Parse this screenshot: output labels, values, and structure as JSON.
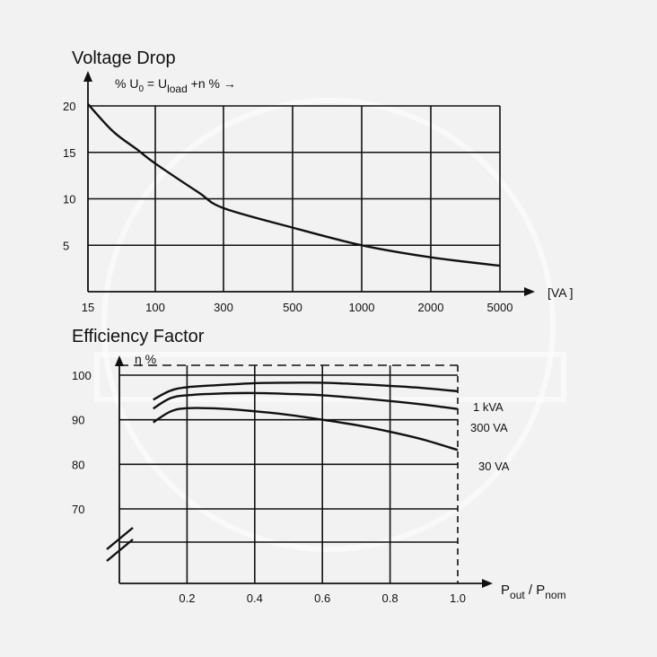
{
  "chart_data": [
    {
      "type": "line",
      "title": "Voltage Drop",
      "ylabel_parts": {
        "pre": "% U",
        "sub0": "0",
        "mid": " = U",
        "sub1": "load",
        "post": "  +n %  →"
      },
      "xlabel": "[VA ]",
      "x_scale": "log",
      "x_ticks": [
        "15",
        "100",
        "300",
        "500",
        "1000",
        "2000",
        "5000"
      ],
      "y_ticks": [
        "5",
        "10",
        "15",
        "20"
      ],
      "ylim": [
        0,
        20
      ],
      "grid": true,
      "series": [
        {
          "points": [
            {
              "x": 15,
              "y": 20.2
            },
            {
              "x": 30,
              "y": 17.3
            },
            {
              "x": 60,
              "y": 15.3
            },
            {
              "x": 100,
              "y": 13.8
            },
            {
              "x": 200,
              "y": 10.7
            },
            {
              "x": 300,
              "y": 9.0
            },
            {
              "x": 500,
              "y": 6.9
            },
            {
              "x": 1000,
              "y": 5.0
            },
            {
              "x": 2000,
              "y": 3.7
            },
            {
              "x": 5000,
              "y": 2.8
            }
          ]
        }
      ]
    },
    {
      "type": "line",
      "title": "Efficiency Factor",
      "ylabel": "η %",
      "xlabel_parts": {
        "pre": "P",
        "sub0": "out",
        "mid": "  /  P",
        "sub1": "nom"
      },
      "x_ticks": [
        "0.2",
        "0.4",
        "0.6",
        "0.8",
        "1.0"
      ],
      "y_ticks": [
        "70",
        "80",
        "90",
        "100"
      ],
      "xlim": [
        0,
        1.0
      ],
      "ylim": [
        70,
        100
      ],
      "grid": true,
      "series": [
        {
          "name": "1 kVA",
          "points": [
            {
              "x": 0.1,
              "y": 94.5
            },
            {
              "x": 0.15,
              "y": 96.5
            },
            {
              "x": 0.2,
              "y": 97.3
            },
            {
              "x": 0.3,
              "y": 97.8
            },
            {
              "x": 0.4,
              "y": 98.2
            },
            {
              "x": 0.5,
              "y": 98.3
            },
            {
              "x": 0.6,
              "y": 98.3
            },
            {
              "x": 0.7,
              "y": 98.0
            },
            {
              "x": 0.8,
              "y": 97.6
            },
            {
              "x": 0.9,
              "y": 97.1
            },
            {
              "x": 1.0,
              "y": 96.4
            }
          ]
        },
        {
          "name": "300 VA",
          "points": [
            {
              "x": 0.1,
              "y": 92.5
            },
            {
              "x": 0.15,
              "y": 94.8
            },
            {
              "x": 0.2,
              "y": 95.5
            },
            {
              "x": 0.3,
              "y": 95.9
            },
            {
              "x": 0.4,
              "y": 96.0
            },
            {
              "x": 0.5,
              "y": 95.8
            },
            {
              "x": 0.6,
              "y": 95.5
            },
            {
              "x": 0.7,
              "y": 94.9
            },
            {
              "x": 0.8,
              "y": 94.2
            },
            {
              "x": 0.9,
              "y": 93.4
            },
            {
              "x": 1.0,
              "y": 92.4
            }
          ]
        },
        {
          "name": "30 VA",
          "points": [
            {
              "x": 0.1,
              "y": 89.4
            },
            {
              "x": 0.15,
              "y": 91.8
            },
            {
              "x": 0.2,
              "y": 92.6
            },
            {
              "x": 0.3,
              "y": 92.5
            },
            {
              "x": 0.4,
              "y": 91.9
            },
            {
              "x": 0.5,
              "y": 91.1
            },
            {
              "x": 0.6,
              "y": 90.0
            },
            {
              "x": 0.7,
              "y": 88.8
            },
            {
              "x": 0.8,
              "y": 87.3
            },
            {
              "x": 0.9,
              "y": 85.5
            },
            {
              "x": 1.0,
              "y": 83.2
            }
          ]
        }
      ]
    }
  ]
}
